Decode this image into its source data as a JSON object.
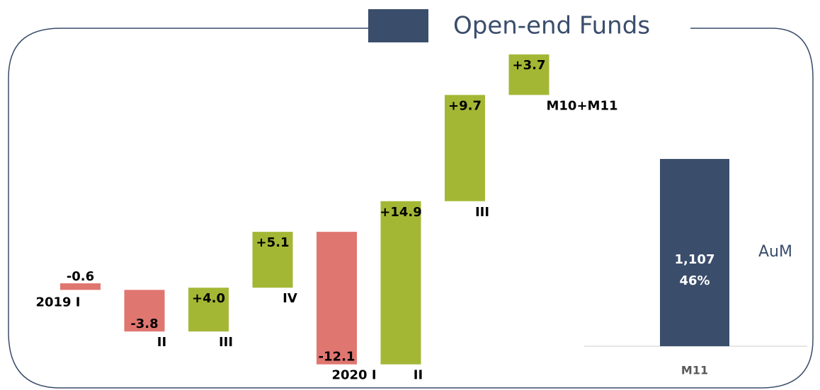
{
  "chart_data": {
    "type": "waterfall",
    "title": "Open-end Funds",
    "categories": [
      "2019 I",
      "II",
      "III",
      "IV",
      "2020 I",
      "II",
      "III",
      "M10+M11"
    ],
    "values": [
      -0.6,
      -3.8,
      4.0,
      5.1,
      -12.1,
      14.9,
      9.7,
      3.7
    ],
    "value_labels": [
      "-0.6",
      "-3.8",
      "+4.0",
      "+5.1",
      "-12.1",
      "+14.9",
      "+9.7",
      "+3.7"
    ],
    "colors": {
      "increase": "#a4b735",
      "decrease": "#e07670"
    },
    "total": {
      "category": "M11",
      "value": 1107,
      "value_label": "1,107",
      "share": 46,
      "share_label": "46%",
      "label": "AuM",
      "color": "#3a4d6b"
    }
  }
}
